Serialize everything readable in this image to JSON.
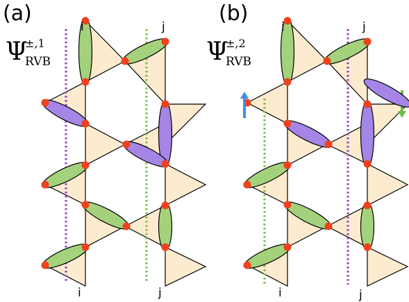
{
  "panels": [
    {
      "id": "a",
      "label": "(a)",
      "psi": {
        "symbol": "Ψ",
        "sup": "±,1",
        "sub": "RVB"
      },
      "labels": {
        "top_i": "i",
        "top_j": "j",
        "bottom_i": "i",
        "bottom_j": "j"
      }
    },
    {
      "id": "b",
      "label": "(b)",
      "psi": {
        "symbol": "Ψ",
        "sup": "±,2",
        "sub": "RVB"
      },
      "labels": {
        "top_i": "i",
        "top_j": "j",
        "bottom_i": "i",
        "bottom_j": "j"
      }
    }
  ],
  "colors": {
    "triangle_fill": "#fdebd0",
    "edge": "#000000",
    "site": "#f0411e",
    "bond_green": "#a4d27c",
    "bond_purple": "#a585e6",
    "line_purple": "#9b3fc9",
    "line_green": "#7cbf3c",
    "arrow_blue": "#3d8fe0",
    "arrow_green": "#6dbd45"
  }
}
